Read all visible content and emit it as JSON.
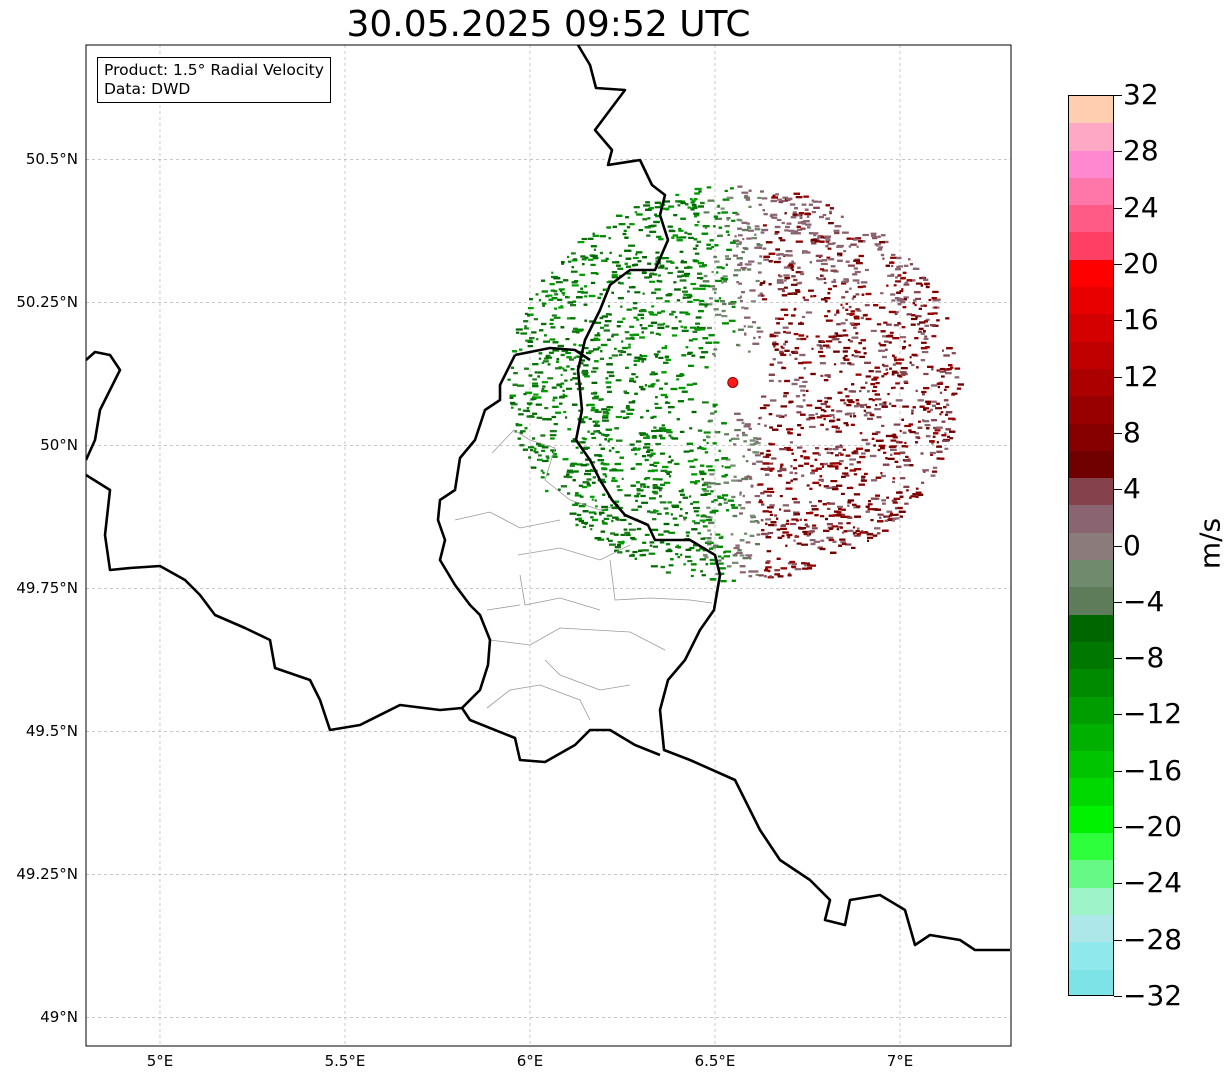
{
  "title": "30.05.2025 09:52 UTC",
  "info_box": {
    "line1": "Product: 1.5° Radial Velocity",
    "line2": "Data: DWD"
  },
  "map": {
    "extent": {
      "lon_min": 4.8,
      "lon_max": 7.3,
      "lat_min": 48.95,
      "lat_max": 50.7
    },
    "lat_ticks": [
      {
        "value": 50.5,
        "label": "50.5°N"
      },
      {
        "value": 50.25,
        "label": "50.25°N"
      },
      {
        "value": 50.0,
        "label": "50°N"
      },
      {
        "value": 49.75,
        "label": "49.75°N"
      },
      {
        "value": 49.5,
        "label": "49.5°N"
      },
      {
        "value": 49.25,
        "label": "49.25°N"
      },
      {
        "value": 49.0,
        "label": "49°N"
      }
    ],
    "lon_ticks": [
      {
        "value": 5.0,
        "label": "5°E"
      },
      {
        "value": 5.5,
        "label": "5.5°E"
      },
      {
        "value": 6.0,
        "label": "6°E"
      },
      {
        "value": 6.5,
        "label": "6.5°E"
      },
      {
        "value": 7.0,
        "label": "7°E"
      }
    ],
    "radar_site": {
      "lon": 6.548,
      "lat": 50.11,
      "color": "#ff1a1a"
    },
    "gridlines": true
  },
  "colorbar": {
    "unit": "m/s",
    "min": -32,
    "max": 32,
    "ticks": [
      32,
      28,
      24,
      20,
      16,
      12,
      8,
      4,
      0,
      -4,
      -8,
      -12,
      -16,
      -20,
      -24,
      -28,
      -32
    ],
    "tick_labels": [
      "32",
      "28",
      "24",
      "20",
      "16",
      "12",
      "8",
      "4",
      "0",
      "−4",
      "−8",
      "−12",
      "−16",
      "−20",
      "−24",
      "−28",
      "−32"
    ],
    "colors_top_to_bottom": [
      "#ffcdb0",
      "#ffa8c6",
      "#ff88d0",
      "#ff77a8",
      "#ff5b86",
      "#ff3f63",
      "#ff0000",
      "#e80000",
      "#d40000",
      "#c00000",
      "#ac0000",
      "#980000",
      "#860000",
      "#700000",
      "#85424c",
      "#8a6470",
      "#8b7b7b",
      "#6f8a6c",
      "#5f7c5a",
      "#006700",
      "#007800",
      "#008a00",
      "#009d00",
      "#00b000",
      "#00c400",
      "#00d900",
      "#00f200",
      "#2dff3c",
      "#66f986",
      "#9ff3c8",
      "#aee7ea",
      "#8ee8ec",
      "#7de3e6"
    ]
  }
}
